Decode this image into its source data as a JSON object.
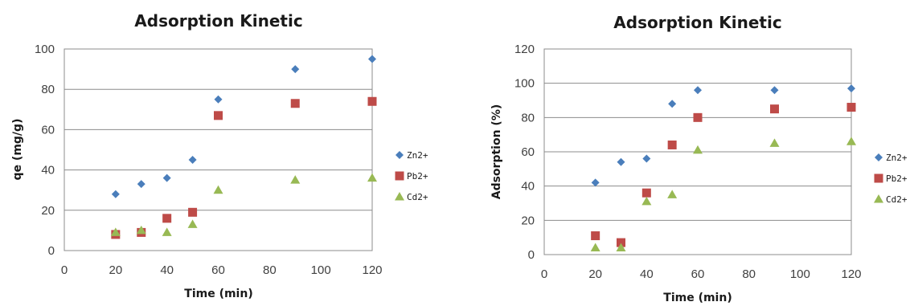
{
  "colors": {
    "Zn2+": "#4a7ebb",
    "Pb2+": "#be4b48",
    "Cd2+": "#98b954"
  },
  "chart_data": [
    {
      "type": "scatter",
      "title": "Adsorption Kinetic",
      "xlabel": "Time (min)",
      "ylabel": "qe (mg/g)",
      "xlim": [
        0,
        120
      ],
      "ylim": [
        0,
        100
      ],
      "xticks": [
        0,
        20,
        40,
        60,
        80,
        100,
        120
      ],
      "yticks": [
        0,
        20,
        40,
        60,
        80,
        100
      ],
      "grid": "horizontal",
      "legend": "right",
      "x": [
        20,
        30,
        40,
        50,
        60,
        90,
        120
      ],
      "series": [
        {
          "name": "Zn2+",
          "marker": "diamond",
          "values": [
            28,
            33,
            36,
            45,
            75,
            90,
            95
          ]
        },
        {
          "name": "Pb2+",
          "marker": "square",
          "values": [
            8,
            9,
            16,
            19,
            67,
            73,
            74
          ]
        },
        {
          "name": "Cd2+",
          "marker": "triangle",
          "values": [
            9,
            10,
            9,
            13,
            30,
            35,
            36
          ]
        }
      ]
    },
    {
      "type": "scatter",
      "title": "Adsorption Kinetic",
      "xlabel": "Time (min)",
      "ylabel": "Adsorption (%)",
      "xlim": [
        0,
        120
      ],
      "ylim": [
        0,
        120
      ],
      "xticks": [
        0,
        20,
        40,
        60,
        80,
        100,
        120
      ],
      "yticks": [
        0,
        20,
        40,
        60,
        80,
        100,
        120
      ],
      "grid": "horizontal",
      "legend": "right",
      "x": [
        20,
        30,
        40,
        50,
        60,
        90,
        120
      ],
      "series": [
        {
          "name": "Zn2+",
          "marker": "diamond",
          "values": [
            42,
            54,
            56,
            88,
            96,
            96,
            97
          ]
        },
        {
          "name": "Pb2+",
          "marker": "square",
          "values": [
            11,
            7,
            36,
            64,
            80,
            85,
            86
          ]
        },
        {
          "name": "Cd2+",
          "marker": "triangle",
          "values": [
            4,
            4,
            31,
            35,
            61,
            65,
            66
          ]
        }
      ]
    }
  ]
}
